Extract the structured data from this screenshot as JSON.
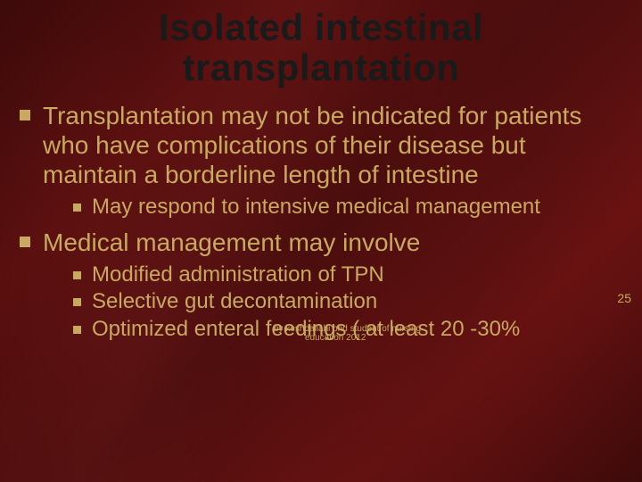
{
  "title_line1": "Isolated intestinal",
  "title_line2": "transplantation",
  "bullet1": "Transplantation may not be indicated for patients who have complications of their disease but maintain a borderline length of intestine",
  "bullet1_sub1": "May respond to intensive medical management",
  "bullet2": "Medical management may involve",
  "bullet2_sub1": "Modified administration of TPN",
  "bullet2_sub2": "Selective gut decontamination",
  "bullet2_sub3": "Optimized enteral feedings ( at least 20 -30%",
  "overlap_text_a": "by keshdallahi phd student of nursing",
  "overlap_text_b": "education 2012",
  "page_number": "25",
  "colors": {
    "text": "#c9a961",
    "title": "#1a1a1a",
    "bg_dark": "#3d0a0a",
    "bg_mid": "#5a0f0f"
  },
  "fontsizes": {
    "title": 42,
    "lvl1": 28,
    "lvl2": 24,
    "footer": 10,
    "pagenum": 14
  }
}
